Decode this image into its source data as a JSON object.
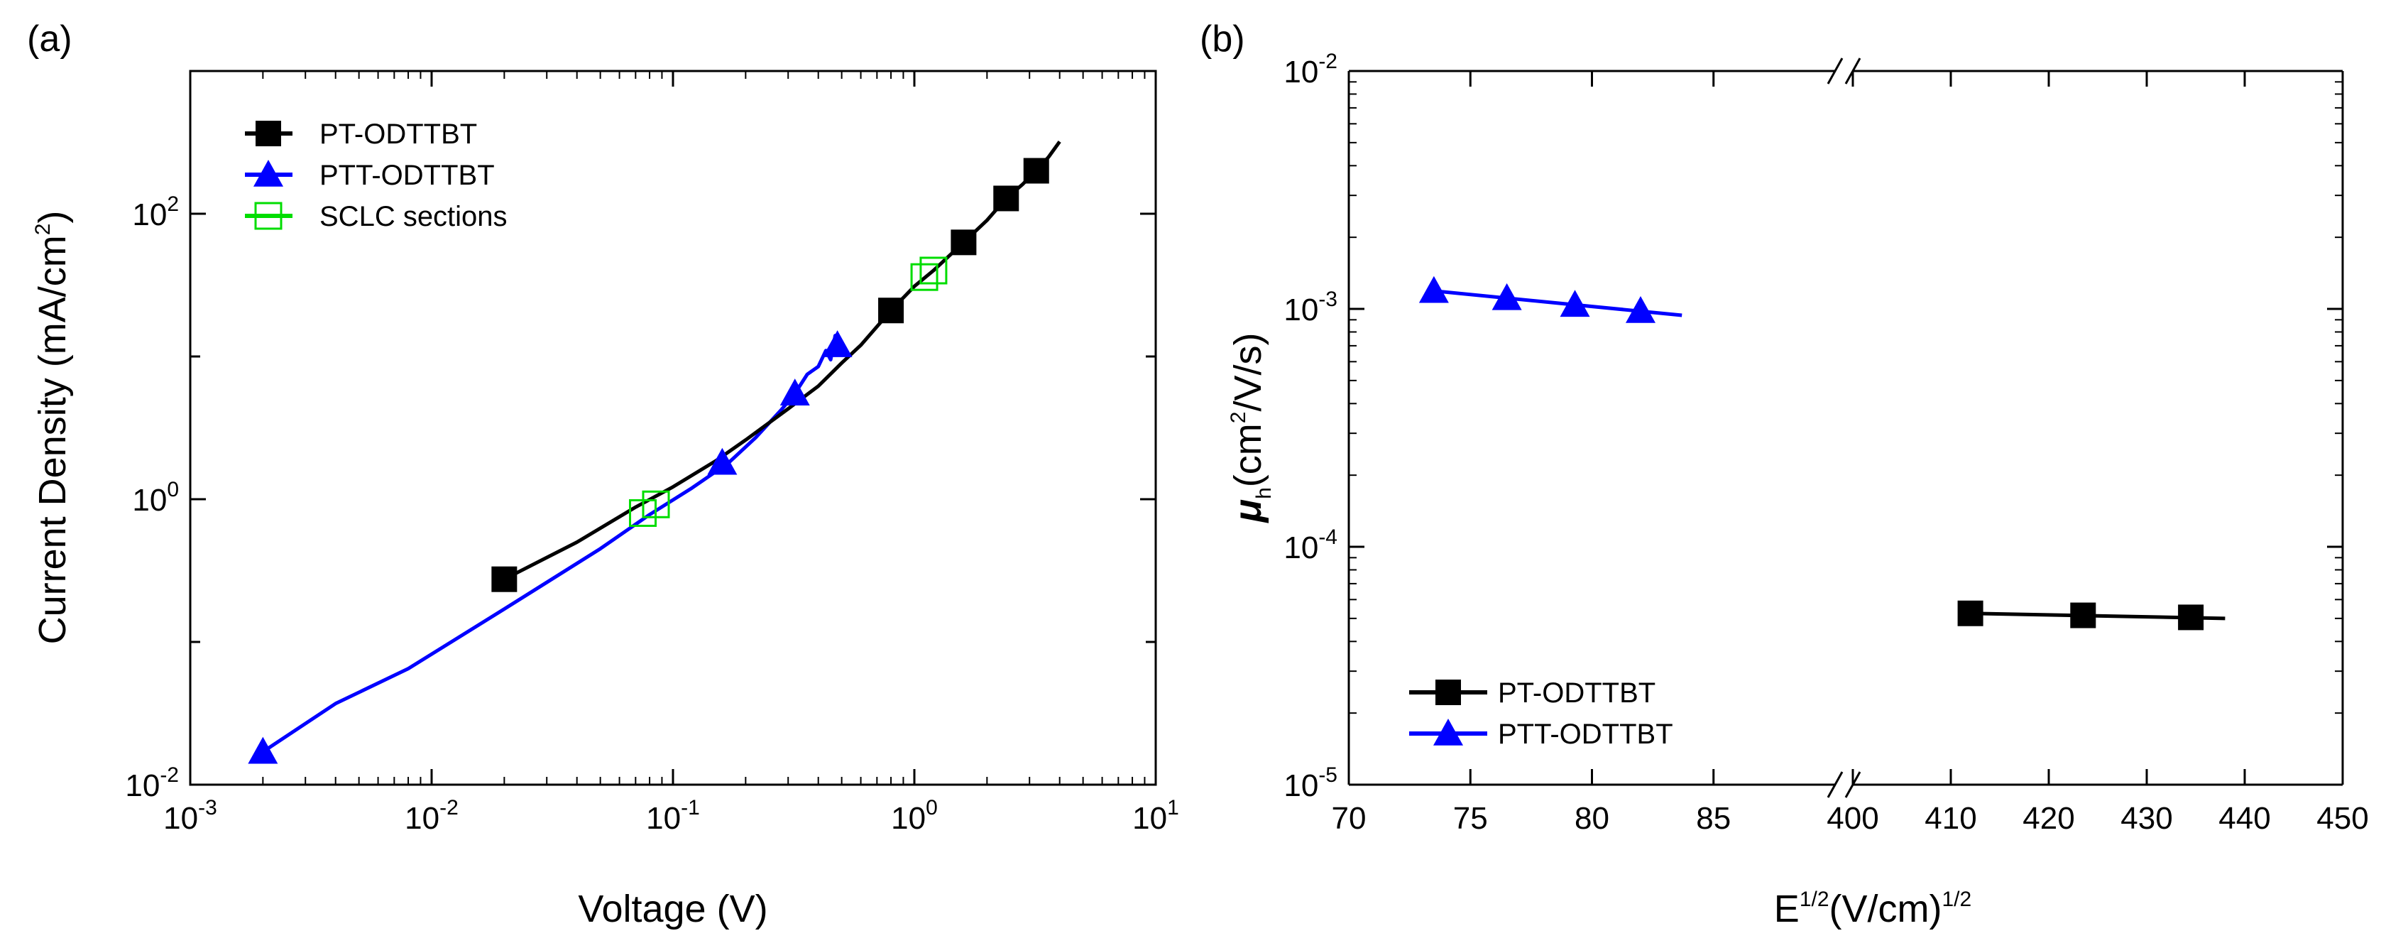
{
  "chart_data": [
    {
      "panel": "(a)",
      "type": "line",
      "title": "",
      "xlabel": "Voltage (V)",
      "ylabel": "Current Density (mA/cm",
      "ylabel_sup": "2",
      "ylabel_end": ")",
      "xscale": "log",
      "yscale": "log",
      "xlim": [
        0.001,
        10
      ],
      "ylim": [
        0.01,
        1000
      ],
      "x_ticks": [
        {
          "base": "10",
          "exp": "-3"
        },
        {
          "base": "10",
          "exp": "-2"
        },
        {
          "base": "10",
          "exp": "-1"
        },
        {
          "base": "10",
          "exp": "0"
        },
        {
          "base": "10",
          "exp": "1"
        }
      ],
      "y_ticks": [
        {
          "base": "10",
          "exp": "-2"
        },
        {
          "base": "10",
          "exp": "0"
        },
        {
          "base": "10",
          "exp": "2"
        }
      ],
      "legend_position": "top-left",
      "series": [
        {
          "name": "PT-ODTTBT",
          "color": "#000000",
          "marker": "square",
          "line": [
            [
              0.02,
              0.275
            ],
            [
              0.04,
              0.5
            ],
            [
              0.07,
              0.88
            ],
            [
              0.1,
              1.22
            ],
            [
              0.15,
              1.85
            ],
            [
              0.2,
              2.6
            ],
            [
              0.3,
              4.3
            ],
            [
              0.4,
              6.2
            ],
            [
              0.5,
              9.0
            ],
            [
              0.6,
              12.0
            ],
            [
              0.8,
              21
            ],
            [
              1.0,
              31
            ],
            [
              1.2,
              40
            ],
            [
              1.6,
              63
            ],
            [
              2.0,
              90
            ],
            [
              2.4,
              128
            ],
            [
              2.8,
              160
            ],
            [
              3.2,
              200
            ],
            [
              3.6,
              250
            ],
            [
              4.0,
              320
            ]
          ],
          "x": [
            0.02,
            0.8,
            1.6,
            2.4,
            3.2
          ],
          "y": [
            0.275,
            21,
            63,
            128,
            200
          ]
        },
        {
          "name": "PTT-ODTTBT",
          "color": "#0000FF",
          "marker": "triangle",
          "line": [
            [
              0.002,
              0.017
            ],
            [
              0.004,
              0.037
            ],
            [
              0.008,
              0.065
            ],
            [
              0.02,
              0.17
            ],
            [
              0.05,
              0.45
            ],
            [
              0.08,
              0.78
            ],
            [
              0.12,
              1.2
            ],
            [
              0.17,
              1.8
            ],
            [
              0.22,
              2.7
            ],
            [
              0.28,
              4.2
            ],
            [
              0.32,
              5.5
            ],
            [
              0.36,
              7.5
            ],
            [
              0.4,
              8.5
            ],
            [
              0.43,
              11
            ],
            [
              0.45,
              9.5
            ],
            [
              0.47,
              14
            ],
            [
              0.5,
              12
            ]
          ],
          "x": [
            0.002,
            0.16,
            0.32,
            0.48
          ],
          "y": [
            0.017,
            1.8,
            5.5,
            12
          ]
        },
        {
          "name": "SCLC sections",
          "color": "#00DD00",
          "marker": "square-open",
          "x": [
            0.075,
            0.085,
            1.1,
            1.2
          ],
          "y": [
            0.8,
            0.92,
            36,
            40
          ]
        }
      ]
    },
    {
      "panel": "(b)",
      "type": "line",
      "title": "",
      "xlabel_base": "E",
      "xlabel_sup": "1/2",
      "xlabel_mid": "(V/cm)",
      "xlabel_sup2": "1/2",
      "ylabel_mu": "μ",
      "ylabel_sub": "h",
      "ylabel_rest": "(cm",
      "ylabel_sup": "2",
      "ylabel_end": "/V/s)",
      "xscale": "linear-broken",
      "yscale": "log",
      "x_segments": [
        [
          70,
          90
        ],
        [
          400,
          450
        ]
      ],
      "ylim": [
        1e-05,
        0.01
      ],
      "x_ticks": [
        "70",
        "75",
        "80",
        "85",
        "400",
        "410",
        "420",
        "430",
        "440",
        "450"
      ],
      "x_tick_values": [
        70,
        75,
        80,
        85,
        400,
        410,
        420,
        430,
        440,
        450
      ],
      "y_ticks": [
        {
          "base": "10",
          "exp": "-5"
        },
        {
          "base": "10",
          "exp": "-4"
        },
        {
          "base": "10",
          "exp": "-3"
        },
        {
          "base": "10",
          "exp": "-2"
        }
      ],
      "legend_position": "bottom-left",
      "series": [
        {
          "name": "PT-ODTTBT",
          "color": "#000000",
          "marker": "square",
          "x": [
            412,
            423.5,
            434.5
          ],
          "y": [
            5.25e-05,
            5.15e-05,
            5.05e-05
          ],
          "line": [
            [
              412,
              5.25e-05
            ],
            [
              438,
              5e-05
            ]
          ]
        },
        {
          "name": "PTT-ODTTBT",
          "color": "#0000FF",
          "marker": "triangle",
          "x": [
            73.5,
            76.5,
            79.3,
            82
          ],
          "y": [
            0.00119,
            0.00111,
            0.00104,
            0.00098
          ],
          "line": [
            [
              73.5,
              0.00119
            ],
            [
              83.7,
              0.00094
            ]
          ]
        }
      ]
    }
  ]
}
